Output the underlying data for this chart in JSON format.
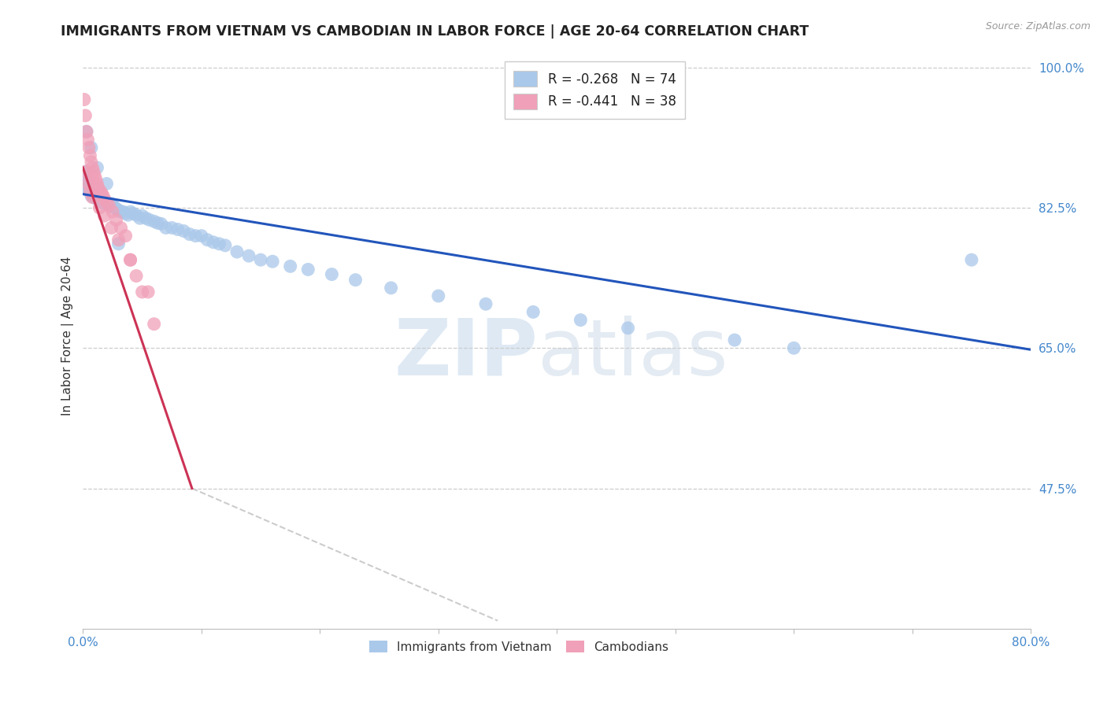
{
  "title": "IMMIGRANTS FROM VIETNAM VS CAMBODIAN IN LABOR FORCE | AGE 20-64 CORRELATION CHART",
  "source": "Source: ZipAtlas.com",
  "ylabel": "In Labor Force | Age 20-64",
  "xlim": [
    0.0,
    0.8
  ],
  "ylim": [
    0.3,
    1.03
  ],
  "yticks": [
    0.475,
    0.65,
    0.825,
    1.0
  ],
  "ytick_labels": [
    "47.5%",
    "65.0%",
    "82.5%",
    "100.0%"
  ],
  "xticks": [
    0.0,
    0.1,
    0.2,
    0.3,
    0.4,
    0.5,
    0.6,
    0.7,
    0.8
  ],
  "xtick_labels": [
    "0.0%",
    "",
    "",
    "",
    "",
    "",
    "",
    "",
    "80.0%"
  ],
  "vietnam_x": [
    0.001,
    0.002,
    0.003,
    0.004,
    0.005,
    0.006,
    0.007,
    0.008,
    0.009,
    0.01,
    0.011,
    0.012,
    0.013,
    0.015,
    0.016,
    0.017,
    0.018,
    0.019,
    0.02,
    0.021,
    0.022,
    0.024,
    0.025,
    0.026,
    0.027,
    0.028,
    0.03,
    0.032,
    0.034,
    0.036,
    0.038,
    0.04,
    0.042,
    0.045,
    0.048,
    0.05,
    0.053,
    0.056,
    0.06,
    0.063,
    0.066,
    0.07,
    0.075,
    0.08,
    0.085,
    0.09,
    0.095,
    0.1,
    0.105,
    0.11,
    0.115,
    0.12,
    0.13,
    0.14,
    0.15,
    0.16,
    0.175,
    0.19,
    0.21,
    0.23,
    0.26,
    0.3,
    0.34,
    0.38,
    0.42,
    0.46,
    0.55,
    0.6,
    0.75,
    0.003,
    0.007,
    0.012,
    0.02,
    0.03
  ],
  "vietnam_y": [
    0.855,
    0.87,
    0.86,
    0.85,
    0.848,
    0.845,
    0.84,
    0.842,
    0.838,
    0.84,
    0.838,
    0.836,
    0.835,
    0.835,
    0.832,
    0.834,
    0.83,
    0.832,
    0.832,
    0.83,
    0.828,
    0.83,
    0.828,
    0.826,
    0.825,
    0.824,
    0.822,
    0.82,
    0.82,
    0.818,
    0.816,
    0.82,
    0.818,
    0.816,
    0.812,
    0.815,
    0.812,
    0.81,
    0.808,
    0.806,
    0.805,
    0.8,
    0.8,
    0.798,
    0.796,
    0.792,
    0.79,
    0.79,
    0.785,
    0.782,
    0.78,
    0.778,
    0.77,
    0.765,
    0.76,
    0.758,
    0.752,
    0.748,
    0.742,
    0.735,
    0.725,
    0.715,
    0.705,
    0.695,
    0.685,
    0.675,
    0.66,
    0.65,
    0.76,
    0.92,
    0.9,
    0.875,
    0.855,
    0.78
  ],
  "cambodian_x": [
    0.001,
    0.002,
    0.003,
    0.004,
    0.005,
    0.006,
    0.007,
    0.008,
    0.009,
    0.01,
    0.011,
    0.012,
    0.013,
    0.015,
    0.016,
    0.017,
    0.018,
    0.02,
    0.022,
    0.025,
    0.028,
    0.032,
    0.036,
    0.04,
    0.045,
    0.05,
    0.06,
    0.002,
    0.004,
    0.006,
    0.008,
    0.01,
    0.014,
    0.018,
    0.024,
    0.03,
    0.04,
    0.055
  ],
  "cambodian_y": [
    0.96,
    0.94,
    0.92,
    0.91,
    0.9,
    0.89,
    0.882,
    0.875,
    0.87,
    0.865,
    0.86,
    0.855,
    0.85,
    0.845,
    0.842,
    0.84,
    0.836,
    0.832,
    0.828,
    0.82,
    0.81,
    0.8,
    0.79,
    0.76,
    0.74,
    0.72,
    0.68,
    0.87,
    0.855,
    0.845,
    0.838,
    0.84,
    0.825,
    0.815,
    0.8,
    0.785,
    0.76,
    0.72
  ],
  "watermark_zip": "ZIP",
  "watermark_atlas": "atlas",
  "line_blue_color": "#2255bb",
  "line_pink_color": "#cc3355",
  "scatter_blue_color": "#aac8ea",
  "scatter_pink_color": "#f0a0b8",
  "trend_blue_x0": 0.0,
  "trend_blue_y0": 0.842,
  "trend_blue_x1": 0.8,
  "trend_blue_y1": 0.648,
  "trend_pink_x0": 0.0,
  "trend_pink_y0": 0.875,
  "trend_pink_x1": 0.092,
  "trend_pink_y1": 0.475,
  "trend_pink_dash_x1": 0.35,
  "trend_pink_dash_y1": 0.31,
  "bg_color": "#ffffff",
  "grid_color": "#cccccc",
  "tick_color": "#4488cc",
  "title_fontsize": 12.5,
  "axis_label_fontsize": 11,
  "tick_fontsize": 11,
  "source_fontsize": 9
}
